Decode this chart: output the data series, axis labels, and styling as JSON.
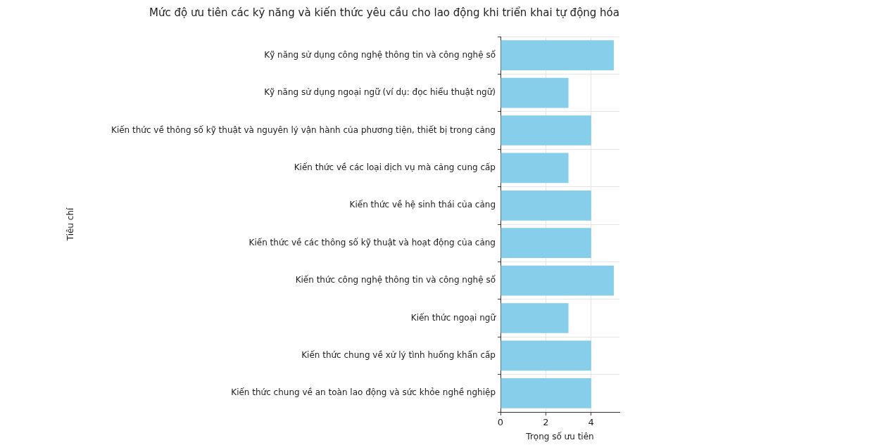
{
  "chart_data": {
    "type": "bar",
    "orientation": "horizontal",
    "title": "Mức độ ưu tiên các kỹ năng và kiến thức yêu cầu cho lao động khi triển khai tự động hóa",
    "xlabel": "Trọng số ưu tiên",
    "ylabel": "Tiêu chí",
    "categories": [
      "Kỹ năng sử dụng công nghệ thông tin và công nghệ số",
      "Kỹ năng sử dụng ngoại ngữ (ví dụ: đọc hiểu thuật ngữ)",
      "Kiến thức về thông số kỹ thuật và nguyên lý vận hành của phương tiện, thiết bị trong cảng",
      "Kiến thức về các loại dịch vụ mà cảng cung cấp",
      "Kiến thức về hệ sinh thái của cảng",
      "Kiến thức về các thông số kỹ thuật và hoạt động của cảng",
      "Kiến thức công nghệ thông tin và công nghệ số",
      "Kiến thức ngoại ngữ",
      "Kiến thức chung về xử lý tình huống khẩn cấp",
      "Kiến thức chung về an toàn lao động và sức khỏe nghề nghiệp"
    ],
    "values": [
      5,
      3,
      4,
      3,
      4,
      4,
      5,
      3,
      4,
      4
    ],
    "color": "#87ceeb",
    "xlim": [
      0,
      5.25
    ],
    "xticks": [
      0,
      2,
      4
    ],
    "grid": true
  }
}
